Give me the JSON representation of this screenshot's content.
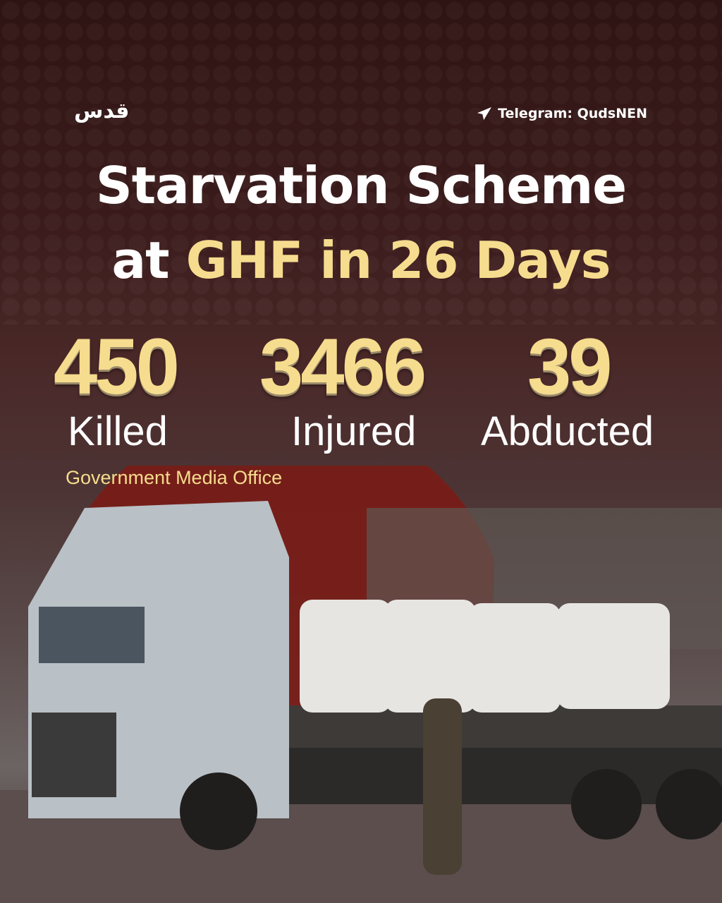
{
  "header": {
    "logo_text": "قدس",
    "telegram_icon": "paper-plane-icon",
    "telegram_label": "Telegram: QudsNEN"
  },
  "title": {
    "line1": "Starvation Scheme",
    "line2_prefix": "at",
    "line2_highlight": "GHF in 26 Days"
  },
  "stats": [
    {
      "value": "450",
      "label": "Killed"
    },
    {
      "value": "3466",
      "label": "Injured"
    },
    {
      "value": "39",
      "label": "Abducted"
    }
  ],
  "source": "Government Media Office",
  "colors": {
    "accent": "#f6dc8e",
    "background": "#3b1b1b",
    "sun": "#7a1c16"
  }
}
